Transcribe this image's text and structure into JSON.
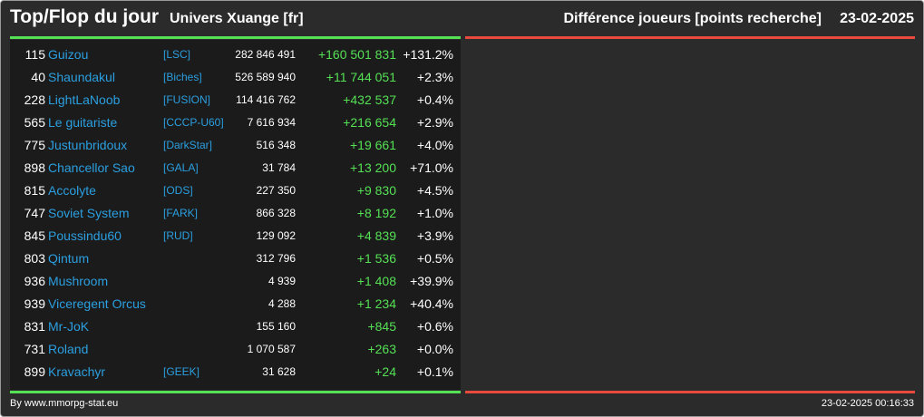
{
  "header": {
    "title": "Top/Flop du jour",
    "universe": "Univers Xuange [fr]",
    "metric": "Différence joueurs [points recherche]",
    "date": "23-02-2025"
  },
  "colors": {
    "positive": "#55e055",
    "negative": "#e84a3e",
    "link": "#2b9fe0",
    "background": "#2b2b2b"
  },
  "top_rows": [
    {
      "rank": "115",
      "name": "Guizou",
      "alliance": "[LSC]",
      "points": "282 846 491",
      "diff": "+160 501 831",
      "pct": "+131.2%"
    },
    {
      "rank": "40",
      "name": "Shaundakul",
      "alliance": "[Biches]",
      "points": "526 589 940",
      "diff": "+11 744 051",
      "pct": "+2.3%"
    },
    {
      "rank": "228",
      "name": "LightLaNoob",
      "alliance": "[FUSION]",
      "points": "114 416 762",
      "diff": "+432 537",
      "pct": "+0.4%"
    },
    {
      "rank": "565",
      "name": "Le guitariste",
      "alliance": "[CCCP-U60]",
      "points": "7 616 934",
      "diff": "+216 654",
      "pct": "+2.9%"
    },
    {
      "rank": "775",
      "name": "Justunbridoux",
      "alliance": "[DarkStar]",
      "points": "516 348",
      "diff": "+19 661",
      "pct": "+4.0%"
    },
    {
      "rank": "898",
      "name": "Chancellor Sao",
      "alliance": "[GALA]",
      "points": "31 784",
      "diff": "+13 200",
      "pct": "+71.0%"
    },
    {
      "rank": "815",
      "name": "Accolyte",
      "alliance": "[ODS]",
      "points": "227 350",
      "diff": "+9 830",
      "pct": "+4.5%"
    },
    {
      "rank": "747",
      "name": "Soviet System",
      "alliance": "[FARK]",
      "points": "866 328",
      "diff": "+8 192",
      "pct": "+1.0%"
    },
    {
      "rank": "845",
      "name": "Poussindu60",
      "alliance": "[RUD]",
      "points": "129 092",
      "diff": "+4 839",
      "pct": "+3.9%"
    },
    {
      "rank": "803",
      "name": "Qintum",
      "alliance": "",
      "points": "312 796",
      "diff": "+1 536",
      "pct": "+0.5%"
    },
    {
      "rank": "936",
      "name": "Mushroom",
      "alliance": "",
      "points": "4 939",
      "diff": "+1 408",
      "pct": "+39.9%"
    },
    {
      "rank": "939",
      "name": "Viceregent Orcus",
      "alliance": "",
      "points": "4 288",
      "diff": "+1 234",
      "pct": "+40.4%"
    },
    {
      "rank": "831",
      "name": "Mr-JoK",
      "alliance": "",
      "points": "155 160",
      "diff": "+845",
      "pct": "+0.6%"
    },
    {
      "rank": "731",
      "name": "Roland",
      "alliance": "",
      "points": "1 070 587",
      "diff": "+263",
      "pct": "+0.0%"
    },
    {
      "rank": "899",
      "name": "Kravachyr",
      "alliance": "[GEEK]",
      "points": "31 628",
      "diff": "+24",
      "pct": "+0.1%"
    }
  ],
  "flop_rows": [],
  "footer": {
    "credit": "By www.mmorpg-stat.eu",
    "generated": "23-02-2025 00:16:33"
  }
}
